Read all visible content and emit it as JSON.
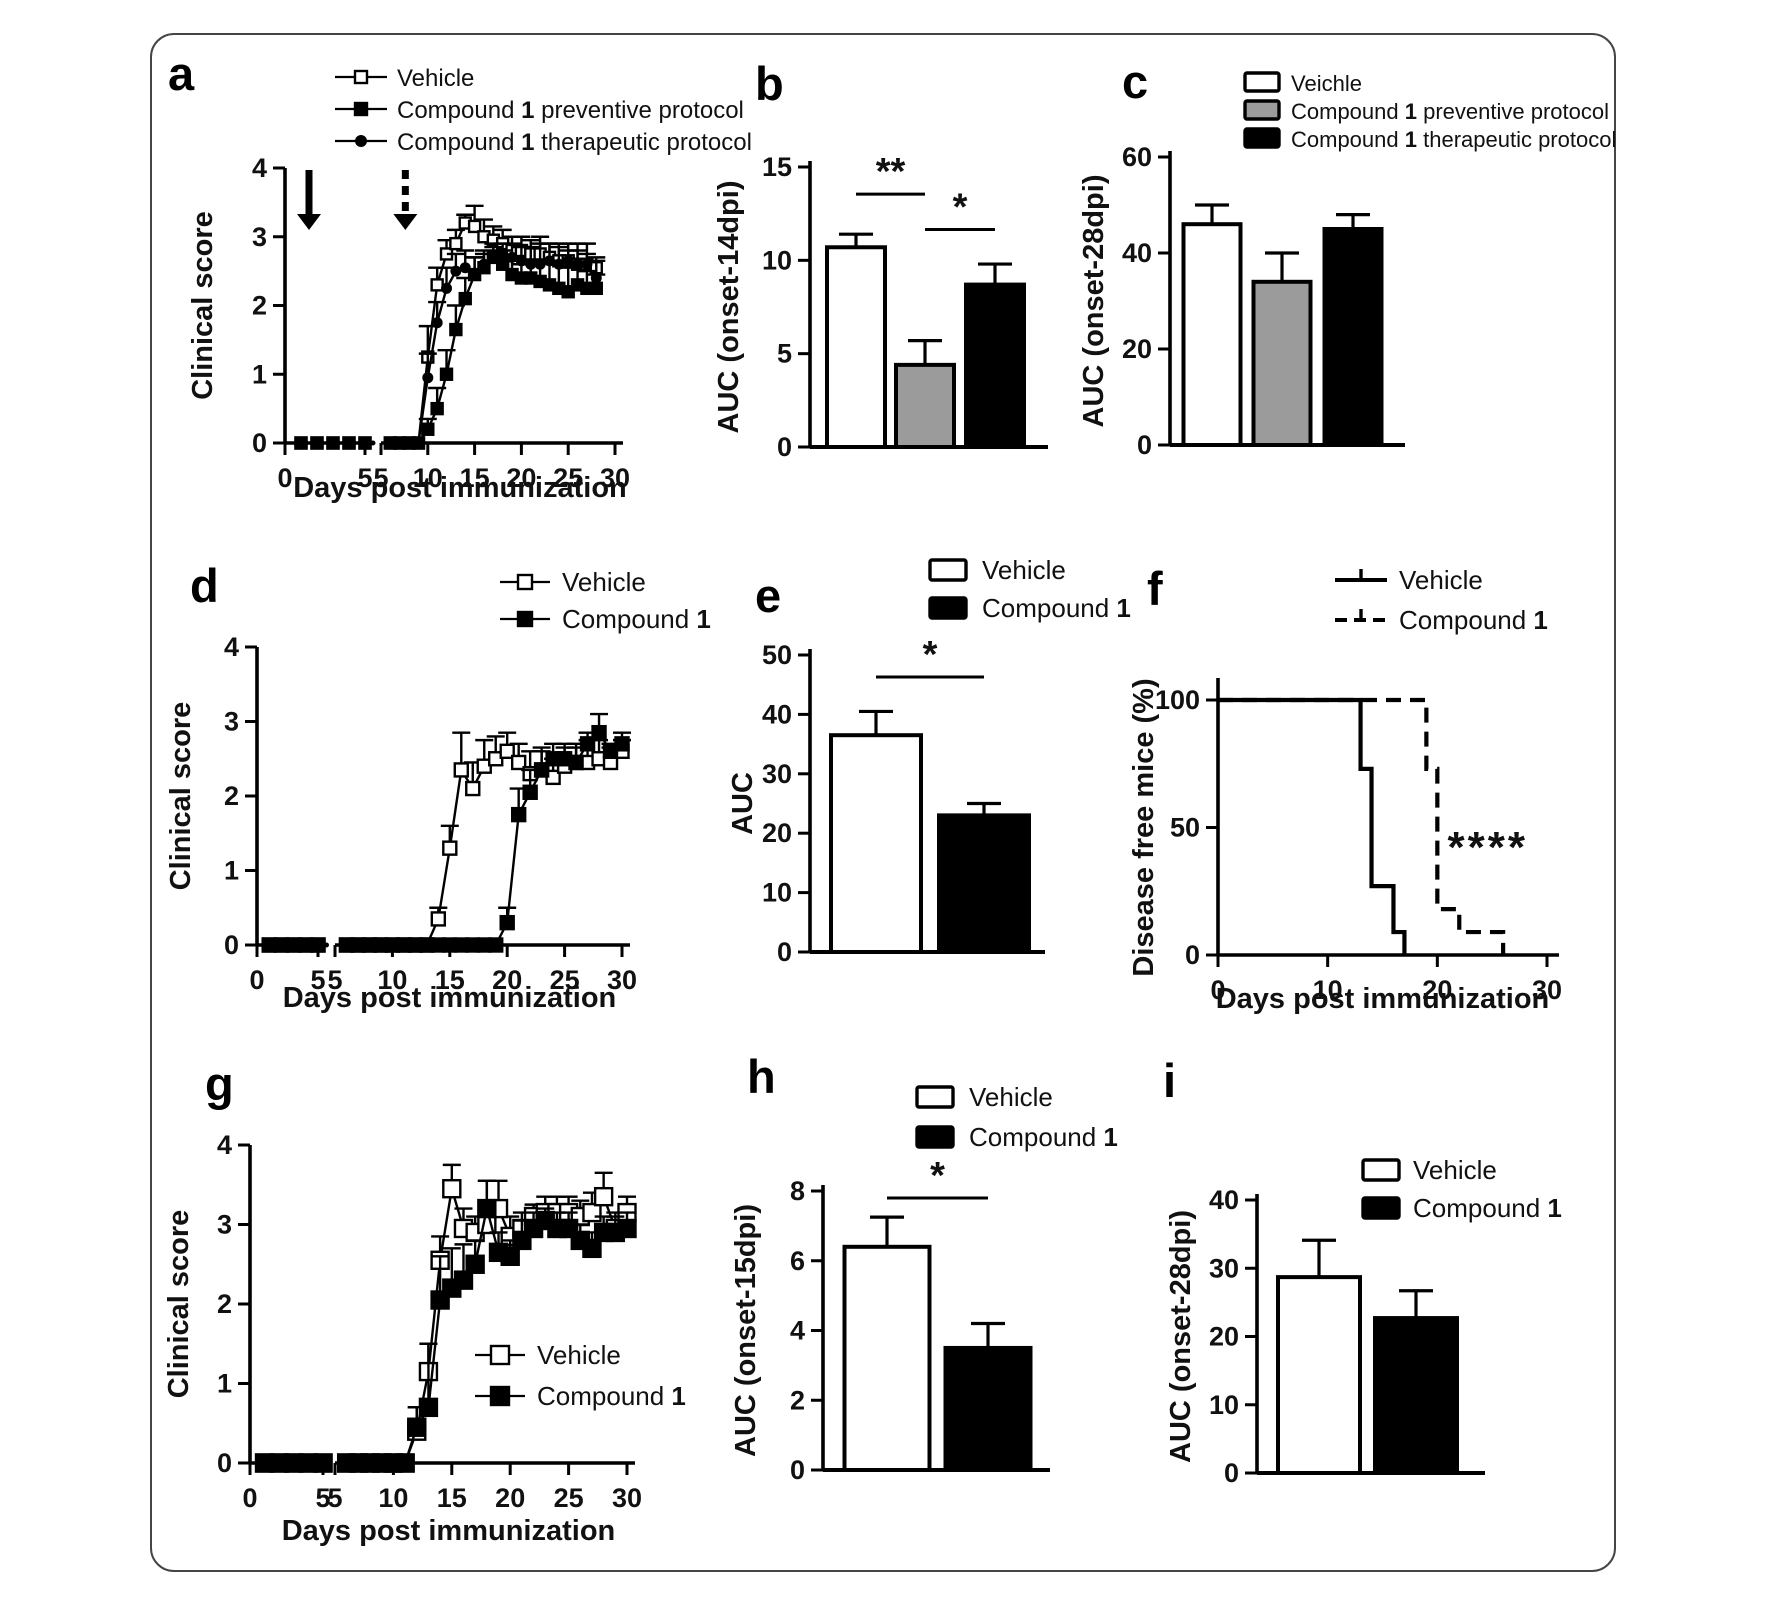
{
  "figure": {
    "background": "#ffffff",
    "border_color": "#454545",
    "text_color": "#111111",
    "gray_fill": "#9b9b9b"
  },
  "chart_data": [
    {
      "id": "a",
      "panel_label": "a",
      "type": "line",
      "xlabel": "Days post immunization",
      "ylabel": "Clinical score",
      "ylim": [
        0,
        4
      ],
      "yticks": [
        0,
        1,
        2,
        3,
        4
      ],
      "xticks_seg1": [
        0,
        5
      ],
      "xticks_seg2": [
        5,
        10,
        15,
        20,
        25,
        30
      ],
      "legend": [
        {
          "label": "Vehicle",
          "marker": "square-open"
        },
        {
          "label": "Compound 1 preventive protocol",
          "marker": "square-filled"
        },
        {
          "label": "Compound 1 therapeutic protocol",
          "marker": "circle-filled"
        }
      ],
      "arrows": [
        {
          "day": 1.5,
          "style": "solid"
        },
        {
          "day": 7.6,
          "style": "dashed"
        }
      ],
      "series": [
        {
          "name": "Vehicle",
          "marker": "square-open",
          "x": [
            1,
            2,
            3,
            4,
            5,
            6,
            7,
            8,
            9,
            10,
            11,
            12,
            13,
            14,
            15,
            16,
            17,
            18,
            19,
            20,
            21,
            22,
            23,
            24,
            25,
            26,
            27,
            28
          ],
          "y": [
            0,
            0,
            0,
            0,
            0,
            0,
            0,
            0,
            0,
            1.25,
            2.3,
            2.75,
            2.9,
            3.2,
            3.15,
            3.0,
            2.95,
            2.9,
            2.8,
            2.8,
            2.75,
            2.75,
            2.7,
            2.65,
            2.65,
            2.6,
            2.6,
            2.55
          ],
          "err": [
            0,
            0,
            0,
            0,
            0,
            0,
            0,
            0,
            0,
            0.45,
            0.25,
            0.2,
            0.2,
            0.12,
            0.3,
            0.25,
            0.2,
            0.2,
            0.2,
            0.2,
            0.2,
            0.25,
            0.2,
            0.2,
            0.15,
            0.2,
            0.15,
            0.15
          ]
        },
        {
          "name": "Compound 1 preventive protocol",
          "marker": "square-filled",
          "x": [
            1,
            2,
            3,
            4,
            5,
            6,
            7,
            8,
            9,
            10,
            11,
            12,
            13,
            14,
            15,
            16,
            17,
            18,
            19,
            20,
            21,
            22,
            23,
            24,
            25,
            26,
            27,
            28
          ],
          "y": [
            0,
            0,
            0,
            0,
            0,
            0,
            0,
            0,
            0,
            0.2,
            0.5,
            1.0,
            1.65,
            2.1,
            2.45,
            2.55,
            2.7,
            2.6,
            2.45,
            2.4,
            2.4,
            2.35,
            2.3,
            2.25,
            2.2,
            2.3,
            2.25,
            2.25
          ],
          "err": [
            0,
            0,
            0,
            0,
            0,
            0,
            0,
            0,
            0,
            0.15,
            0.3,
            0.35,
            0.35,
            0.3,
            0.25,
            0.2,
            0.15,
            0.2,
            0.2,
            0.2,
            0.25,
            0.3,
            0.35,
            0.4,
            0.35,
            0.3,
            0.25,
            0.2
          ]
        },
        {
          "name": "Compound 1 therapeutic protocol",
          "marker": "circle-filled",
          "x": [
            1,
            2,
            3,
            4,
            5,
            6,
            7,
            8,
            9,
            10,
            11,
            12,
            13,
            14,
            15,
            16,
            17,
            18,
            19,
            20,
            21,
            22,
            23,
            24,
            25,
            26,
            27,
            28
          ],
          "y": [
            0,
            0,
            0,
            0,
            0,
            0,
            0,
            0,
            0,
            0.95,
            1.75,
            2.25,
            2.5,
            2.55,
            2.45,
            2.6,
            2.7,
            2.75,
            2.7,
            2.65,
            2.6,
            2.6,
            2.65,
            2.6,
            2.65,
            2.6,
            2.6,
            2.4
          ],
          "err": [
            0,
            0,
            0,
            0,
            0,
            0,
            0,
            0,
            0,
            0.35,
            0.3,
            0.3,
            0.25,
            0.25,
            0.25,
            0.2,
            0.2,
            0.15,
            0.2,
            0.2,
            0.25,
            0.3,
            0.25,
            0.3,
            0.25,
            0.3,
            0.3,
            0.25
          ]
        }
      ]
    },
    {
      "id": "b",
      "panel_label": "b",
      "type": "bar",
      "ylabel": "AUC (onset-14dpi)",
      "ylim": [
        0,
        15
      ],
      "yticks": [
        0,
        5,
        10,
        15
      ],
      "bars": [
        {
          "group": "Vehicle",
          "value": 10.7,
          "err": 0.7,
          "fill": "#ffffff"
        },
        {
          "group": "Compound 1 preventive protocol",
          "value": 4.4,
          "err": 1.3,
          "fill": "#9b9b9b"
        },
        {
          "group": "Compound 1 therapeutic protocol",
          "value": 8.7,
          "err": 1.1,
          "fill": "#000000"
        }
      ],
      "sig": [
        {
          "from": 0,
          "to": 1,
          "label": "**",
          "y": 13.55
        },
        {
          "from": 1,
          "to": 2,
          "label": "*",
          "y": 11.65
        }
      ]
    },
    {
      "id": "c",
      "panel_label": "c",
      "type": "bar",
      "ylabel": "AUC (onset-28dpi)",
      "ylim": [
        0,
        60
      ],
      "yticks": [
        0,
        20,
        40,
        60
      ],
      "legend": [
        {
          "label": "Veichle",
          "fill": "#ffffff"
        },
        {
          "label": "Compound 1 preventive protocol",
          "fill": "#9b9b9b"
        },
        {
          "label": "Compound 1 therapeutic protocol",
          "fill": "#000000"
        }
      ],
      "bars": [
        {
          "group": "Veichle",
          "value": 46,
          "err": 4,
          "fill": "#ffffff"
        },
        {
          "group": "Compound 1 preventive protocol",
          "value": 34,
          "err": 6,
          "fill": "#9b9b9b"
        },
        {
          "group": "Compound 1 therapeutic protocol",
          "value": 45,
          "err": 3,
          "fill": "#000000"
        }
      ],
      "sig": []
    },
    {
      "id": "d",
      "panel_label": "d",
      "type": "line",
      "xlabel": "Days post immunization",
      "ylabel": "Clinical score",
      "ylim": [
        0,
        4
      ],
      "yticks": [
        0,
        1,
        2,
        3,
        4
      ],
      "xticks_seg1": [
        0,
        5
      ],
      "xticks_seg2": [
        5,
        10,
        15,
        20,
        25,
        30
      ],
      "legend": [
        {
          "label": "Vehicle",
          "marker": "square-open"
        },
        {
          "label": "Compound 1",
          "marker": "square-filled"
        }
      ],
      "arrows": [],
      "series": [
        {
          "name": "Vehicle",
          "marker": "square-open",
          "x": [
            1,
            2,
            3,
            4,
            5,
            6,
            7,
            8,
            9,
            10,
            11,
            12,
            13,
            14,
            15,
            16,
            17,
            18,
            19,
            20,
            21,
            22,
            23,
            24,
            25,
            26,
            27,
            28,
            29,
            30
          ],
          "y": [
            0,
            0,
            0,
            0,
            0,
            0,
            0,
            0,
            0,
            0,
            0,
            0,
            0,
            0.35,
            1.3,
            2.35,
            2.1,
            2.4,
            2.5,
            2.6,
            2.45,
            2.3,
            2.35,
            2.25,
            2.4,
            2.45,
            2.45,
            2.5,
            2.45,
            2.6
          ],
          "err": [
            0,
            0,
            0,
            0,
            0,
            0,
            0,
            0,
            0,
            0,
            0,
            0,
            0,
            0.15,
            0.3,
            0.5,
            0.35,
            0.35,
            0.3,
            0.25,
            0.25,
            0.3,
            0.3,
            0.25,
            0.25,
            0.25,
            0.3,
            0.25,
            0.2,
            0.15
          ]
        },
        {
          "name": "Compound 1",
          "marker": "square-filled",
          "x": [
            1,
            2,
            3,
            4,
            5,
            6,
            7,
            8,
            9,
            10,
            11,
            12,
            13,
            14,
            15,
            16,
            17,
            18,
            19,
            20,
            21,
            22,
            23,
            24,
            25,
            26,
            27,
            28,
            29,
            30
          ],
          "y": [
            0,
            0,
            0,
            0,
            0,
            0,
            0,
            0,
            0,
            0,
            0,
            0,
            0,
            0,
            0,
            0,
            0,
            0,
            0,
            0.3,
            1.75,
            2.05,
            2.35,
            2.5,
            2.5,
            2.45,
            2.7,
            2.85,
            2.6,
            2.7
          ],
          "err": [
            0,
            0,
            0,
            0,
            0,
            0,
            0,
            0,
            0,
            0,
            0,
            0,
            0,
            0,
            0,
            0,
            0,
            0,
            0,
            0.2,
            0.35,
            0.3,
            0.25,
            0.2,
            0.2,
            0.2,
            0.15,
            0.25,
            0.1,
            0.15
          ]
        }
      ]
    },
    {
      "id": "e",
      "panel_label": "e",
      "type": "bar",
      "ylabel": "AUC",
      "ylim": [
        0,
        50
      ],
      "yticks": [
        0,
        10,
        20,
        30,
        40,
        50
      ],
      "legend": [
        {
          "label": "Vehicle",
          "fill": "#ffffff"
        },
        {
          "label": "Compound 1",
          "fill": "#000000"
        }
      ],
      "bars": [
        {
          "group": "Vehicle",
          "value": 36.5,
          "err": 4,
          "fill": "#ffffff"
        },
        {
          "group": "Compound 1",
          "value": 23,
          "err": 2,
          "fill": "#000000"
        }
      ],
      "sig": [
        {
          "from": 0,
          "to": 1,
          "label": "*",
          "y": 46.3
        }
      ]
    },
    {
      "id": "f",
      "panel_label": "f",
      "type": "survival",
      "xlabel": "Days post immunization",
      "ylabel": "Disease free mice (%)",
      "ylim": [
        0,
        100
      ],
      "yticks": [
        0,
        50,
        100
      ],
      "xlim": [
        0,
        30
      ],
      "xticks": [
        0,
        10,
        20,
        30
      ],
      "legend": [
        {
          "label": "Vehicle",
          "marker": "line-solid"
        },
        {
          "label": "Compound 1",
          "marker": "line-dashed"
        }
      ],
      "annotation": {
        "text": "****",
        "x": 24.6,
        "y": 42
      },
      "series": [
        {
          "name": "Vehicle",
          "style": "solid",
          "x": [
            0,
            13,
            13,
            14,
            14,
            16,
            16,
            17,
            17
          ],
          "y": [
            100,
            100,
            73,
            73,
            27,
            27,
            9,
            9,
            0
          ]
        },
        {
          "name": "Compound 1",
          "style": "dashed",
          "x": [
            0,
            19,
            19,
            20,
            20,
            22,
            22,
            26,
            26
          ],
          "y": [
            100,
            100,
            73,
            73,
            18,
            18,
            9,
            9,
            0
          ]
        }
      ]
    },
    {
      "id": "g",
      "panel_label": "g",
      "type": "line",
      "xlabel": "Days post immunization",
      "ylabel": "Clinical score",
      "ylim": [
        0,
        4
      ],
      "yticks": [
        0,
        1,
        2,
        3,
        4
      ],
      "xticks_seg1": [
        0,
        5
      ],
      "xticks_seg2": [
        5,
        10,
        15,
        20,
        25,
        30
      ],
      "legend": [
        {
          "label": "Vehicle",
          "marker": "square-open"
        },
        {
          "label": "Compound 1",
          "marker": "square-filled"
        }
      ],
      "arrows": [],
      "series": [
        {
          "name": "Vehicle",
          "marker": "square-open",
          "x": [
            1,
            2,
            3,
            4,
            5,
            6,
            7,
            8,
            9,
            10,
            11,
            12,
            13,
            14,
            15,
            16,
            17,
            18,
            19,
            20,
            21,
            22,
            23,
            24,
            25,
            26,
            27,
            28,
            29,
            30
          ],
          "y": [
            0,
            0,
            0,
            0,
            0,
            0,
            0,
            0,
            0,
            0,
            0,
            0.4,
            1.15,
            2.55,
            3.45,
            2.95,
            2.9,
            3.0,
            3.2,
            2.85,
            2.95,
            3.1,
            3.15,
            3.15,
            3.15,
            3.1,
            3.15,
            3.35,
            2.95,
            3.15
          ],
          "err": [
            0,
            0,
            0,
            0,
            0,
            0,
            0,
            0,
            0,
            0,
            0,
            0.3,
            0.35,
            0.3,
            0.3,
            0.25,
            0.2,
            0.55,
            0.35,
            0.25,
            0.2,
            0.15,
            0.2,
            0.2,
            0.2,
            0.2,
            0.25,
            0.3,
            0.2,
            0.2
          ]
        },
        {
          "name": "Compound 1",
          "marker": "square-filled",
          "x": [
            1,
            2,
            3,
            4,
            5,
            6,
            7,
            8,
            9,
            10,
            11,
            12,
            13,
            14,
            15,
            16,
            17,
            18,
            19,
            20,
            21,
            22,
            23,
            24,
            25,
            26,
            27,
            28,
            29,
            30
          ],
          "y": [
            0,
            0,
            0,
            0,
            0,
            0,
            0,
            0,
            0,
            0,
            0,
            0.45,
            0.7,
            2.05,
            2.2,
            2.3,
            2.5,
            3.2,
            2.65,
            2.6,
            2.8,
            2.95,
            3.05,
            2.95,
            2.95,
            2.8,
            2.7,
            2.9,
            2.9,
            2.95
          ],
          "err": [
            0,
            0,
            0,
            0,
            0,
            0,
            0,
            0,
            0,
            0,
            0,
            0.25,
            0.8,
            0.55,
            0.5,
            0.45,
            0.3,
            0.35,
            0.25,
            0.2,
            0.25,
            0.2,
            0.15,
            0.2,
            0.2,
            0.2,
            0.2,
            0.2,
            0.2,
            0.2
          ]
        }
      ]
    },
    {
      "id": "h",
      "panel_label": "h",
      "type": "bar",
      "ylabel": "AUC (onset-15dpi)",
      "ylim": [
        0,
        8
      ],
      "yticks": [
        0,
        2,
        4,
        6,
        8
      ],
      "legend": [
        {
          "label": "Vehicle",
          "fill": "#ffffff"
        },
        {
          "label": "Compound 1",
          "fill": "#000000"
        }
      ],
      "bars": [
        {
          "group": "Vehicle",
          "value": 6.4,
          "err": 0.85,
          "fill": "#ffffff"
        },
        {
          "group": "Compound 1",
          "value": 3.5,
          "err": 0.7,
          "fill": "#000000"
        }
      ],
      "sig": [
        {
          "from": 0,
          "to": 1,
          "label": "*",
          "y": 7.8
        }
      ]
    },
    {
      "id": "i",
      "panel_label": "i",
      "type": "bar",
      "ylabel": "AUC (onset-28dpi)",
      "ylim": [
        0,
        40
      ],
      "yticks": [
        0,
        10,
        20,
        30,
        40
      ],
      "legend": [
        {
          "label": "Vehicle",
          "fill": "#ffffff"
        },
        {
          "label": "Compound 1",
          "fill": "#000000"
        }
      ],
      "bars": [
        {
          "group": "Vehicle",
          "value": 28.7,
          "err": 5.4,
          "fill": "#ffffff"
        },
        {
          "group": "Compound 1",
          "value": 22.7,
          "err": 4,
          "fill": "#000000"
        }
      ],
      "sig": []
    }
  ]
}
